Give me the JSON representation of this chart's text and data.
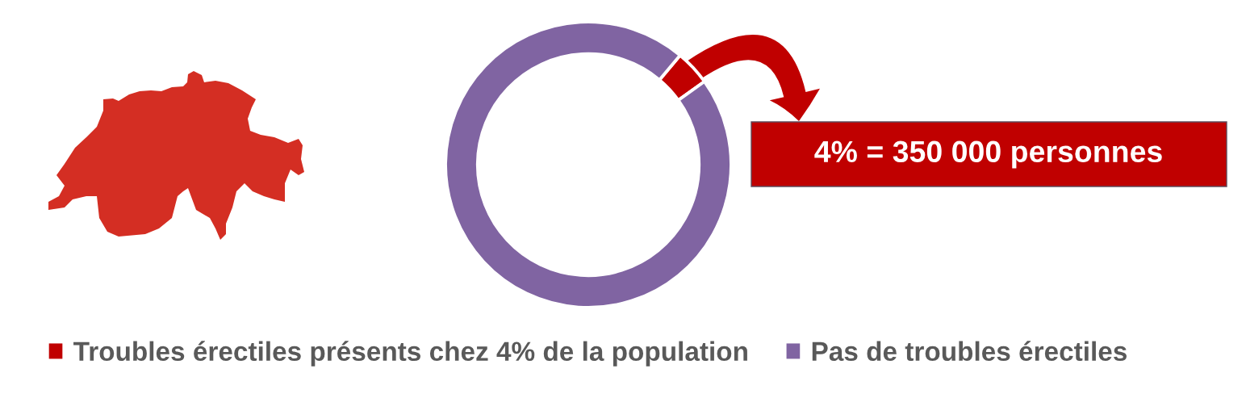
{
  "chart_data": {
    "type": "donut",
    "categories": [
      "Troubles érectiles présents chez 4% de la population",
      "Pas de troubles érectiles"
    ],
    "values": [
      4,
      96
    ],
    "colors": [
      "#c00000",
      "#8064a2"
    ],
    "legend": "bottom",
    "annotations": [
      "4% = 350 000 personnes"
    ]
  }
}
